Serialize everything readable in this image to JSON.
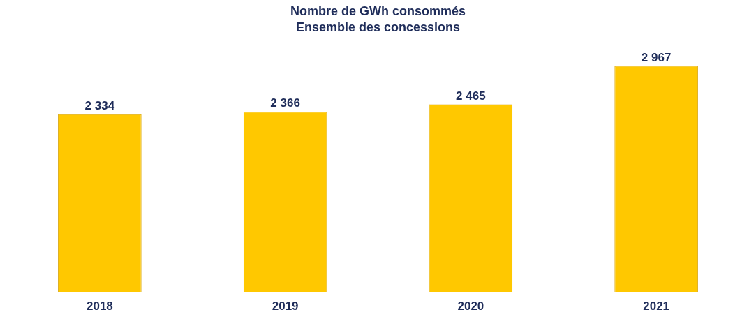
{
  "chart_data": {
    "type": "bar",
    "title": [
      "Nombre de GWh consommés",
      "Ensemble des concessions"
    ],
    "categories": [
      "2018",
      "2019",
      "2020",
      "2021"
    ],
    "values": [
      2334,
      2366,
      2465,
      2967
    ],
    "color": "#ffc800",
    "value_labels": [
      "2 334",
      "2 366",
      "2 465",
      "2 967"
    ],
    "grid": false,
    "legend": false
  }
}
